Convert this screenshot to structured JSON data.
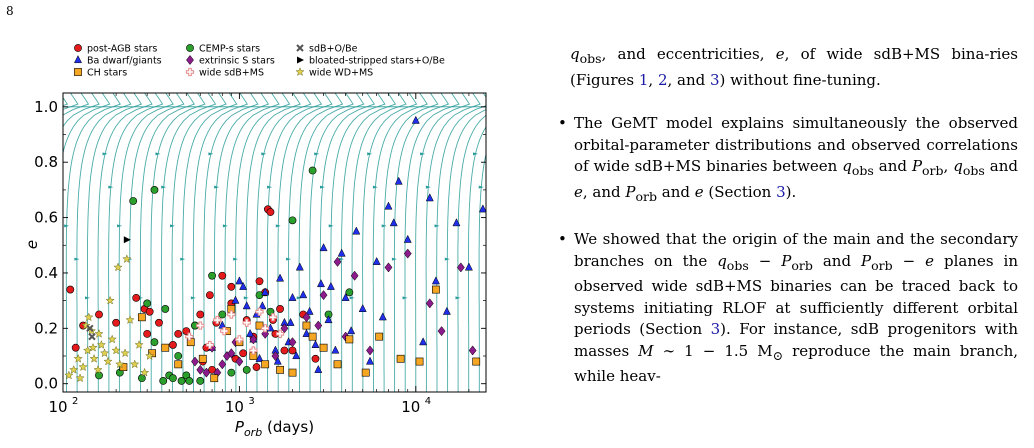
{
  "page": {
    "number": "8"
  },
  "legend": [
    {
      "label": "post-AGB stars",
      "marker": "circle",
      "color": "#e41a1c"
    },
    {
      "label": "CEMP-s stars",
      "marker": "circle",
      "color": "#2ca02c"
    },
    {
      "label": "sdB+O/Be",
      "marker": "x",
      "color": "#555555"
    },
    {
      "label": "Ba dwarf/giants",
      "marker": "triangle",
      "color": "#1f2ee8"
    },
    {
      "label": "extrinsic S stars",
      "marker": "diamond",
      "color": "#8b1a8b"
    },
    {
      "label": "bloated-stripped stars+O/Be",
      "marker": "right-triangle",
      "color": "#000000"
    },
    {
      "label": "CH stars",
      "marker": "square",
      "color": "#f5a623"
    },
    {
      "label": "wide sdB+MS",
      "marker": "plus",
      "color": "#e88a8a"
    },
    {
      "label": "wide WD+MS",
      "marker": "star",
      "color": "#e0d050"
    }
  ],
  "chart_data": {
    "type": "scatter",
    "xlabel": "P_orb (days)",
    "xlabel_main": "P",
    "xlabel_sub": "orb",
    "xlabel_rest": " (days)",
    "ylabel": "e",
    "xscale": "log",
    "xlim": [
      100,
      25000
    ],
    "ylim": [
      -0.03,
      1.05
    ],
    "xticks": [
      100,
      1000,
      10000
    ],
    "xtick_base": "10",
    "xtick_exps": [
      "2",
      "3",
      "4"
    ],
    "yticks": [
      0.0,
      0.2,
      0.4,
      0.6,
      0.8,
      1.0
    ],
    "ytick_labels": [
      "0.0",
      "0.2",
      "0.4",
      "0.6",
      "0.8",
      "1.0"
    ],
    "streamline_color": "#2a9d9a",
    "series": [
      {
        "name": "post-AGB stars",
        "marker": "circle",
        "color": "#e41a1c",
        "x": [
          110,
          118,
          130,
          160,
          200,
          260,
          290,
          300,
          310,
          350,
          420,
          500,
          560,
          620,
          680,
          740,
          800,
          900,
          950,
          1050,
          1100,
          1200,
          1300,
          1450,
          1500,
          1600,
          1700,
          1800,
          2000,
          2300,
          2700,
          600,
          650,
          450,
          1400,
          1550,
          700,
          1250,
          900
        ],
        "y": [
          0.34,
          0.13,
          0.21,
          0.25,
          0.22,
          0.31,
          0.27,
          0.18,
          0.26,
          0.22,
          0.14,
          0.19,
          0.21,
          0.08,
          0.32,
          0.22,
          0.39,
          0.29,
          0.09,
          0.11,
          0.23,
          0.17,
          0.37,
          0.63,
          0.62,
          0.18,
          0.27,
          0.12,
          0.12,
          0.25,
          0.09,
          0.25,
          0.13,
          0.18,
          0.33,
          0.23,
          0.05,
          0.06,
          0.35
        ]
      },
      {
        "name": "CEMP-s stars",
        "marker": "circle",
        "color": "#2ca02c",
        "x": [
          160,
          210,
          250,
          280,
          300,
          330,
          370,
          400,
          420,
          470,
          500,
          520,
          560,
          600,
          700,
          800,
          900,
          1100,
          1300,
          1500,
          2000,
          2600,
          3200,
          4200,
          450,
          380,
          330
        ],
        "y": [
          0.03,
          0.04,
          0.66,
          0.02,
          0.29,
          0.15,
          0.01,
          0.03,
          0.02,
          0.01,
          0.03,
          0.01,
          0.21,
          0.01,
          0.39,
          0.25,
          0.04,
          0.05,
          0.32,
          0.26,
          0.59,
          0.77,
          0.25,
          0.33,
          0.1,
          0.27,
          0.7
        ]
      },
      {
        "name": "Ba dwarf/giants",
        "marker": "triangle",
        "color": "#1f2ee8",
        "x": [
          700,
          800,
          900,
          1000,
          1100,
          1200,
          1250,
          1300,
          1400,
          1500,
          1600,
          1700,
          1800,
          1900,
          2000,
          2100,
          2200,
          2400,
          2500,
          2700,
          2900,
          3000,
          3200,
          3500,
          3800,
          4000,
          4300,
          4600,
          5000,
          5500,
          6000,
          6500,
          7000,
          7500,
          8000,
          9000,
          10000,
          11000,
          12000,
          13000,
          15000,
          17000,
          20000,
          24000,
          3300,
          2800,
          2300,
          1950,
          1650,
          1350,
          1150,
          1050,
          950
        ],
        "y": [
          0.13,
          0.21,
          0.11,
          0.37,
          0.28,
          0.16,
          0.25,
          0.09,
          0.33,
          0.2,
          0.12,
          0.38,
          0.22,
          0.15,
          0.31,
          0.1,
          0.42,
          0.18,
          0.26,
          0.14,
          0.36,
          0.49,
          0.23,
          0.12,
          0.47,
          0.31,
          0.19,
          0.55,
          0.27,
          0.08,
          0.44,
          0.24,
          0.64,
          0.58,
          0.73,
          0.52,
          0.95,
          0.15,
          0.67,
          0.37,
          0.26,
          0.58,
          0.42,
          0.63,
          0.35,
          0.05,
          0.32,
          0.22,
          0.08,
          0.28,
          0.18,
          0.35,
          0.3
        ]
      },
      {
        "name": "extrinsic S stars",
        "marker": "diamond",
        "color": "#8b1a8b",
        "x": [
          560,
          600,
          650,
          700,
          750,
          800,
          850,
          900,
          1000,
          1200,
          1400,
          1600,
          1800,
          2000,
          2400,
          2800,
          3000,
          3600,
          4000,
          4500,
          5500,
          7000,
          9000,
          12000,
          14000,
          18000,
          21000,
          950
        ],
        "y": [
          0.08,
          0.05,
          0.04,
          0.13,
          0.04,
          0.07,
          0.1,
          0.11,
          0.08,
          0.16,
          0.18,
          0.1,
          0.2,
          0.15,
          0.24,
          0.21,
          0.32,
          0.44,
          0.17,
          0.39,
          0.12,
          0.42,
          0.47,
          0.29,
          0.19,
          0.42,
          0.12,
          0.15
        ]
      },
      {
        "name": "CH stars",
        "marker": "square",
        "color": "#f5a623",
        "x": [
          220,
          280,
          320,
          380,
          450,
          530,
          620,
          720,
          850,
          1000,
          1200,
          1400,
          1700,
          2000,
          2400,
          3000,
          3600,
          4200,
          5200,
          6200,
          8200,
          10500,
          13000,
          22000,
          1300,
          2600,
          900
        ],
        "y": [
          0.06,
          0.24,
          0.11,
          0.13,
          0.07,
          0.15,
          0.09,
          0.02,
          0.19,
          0.15,
          0.1,
          0.07,
          0.05,
          0.04,
          0.21,
          0.13,
          0.07,
          0.16,
          0.04,
          0.17,
          0.09,
          0.08,
          0.34,
          0.08,
          0.21,
          0.17,
          0.27
        ]
      },
      {
        "name": "wide sdB+MS",
        "marker": "plus",
        "color": "#e88a8a",
        "x": [
          520,
          600,
          680,
          750,
          820,
          900,
          1000,
          1100,
          1200,
          1300,
          1400,
          1550,
          1700
        ],
        "y": [
          0.17,
          0.21,
          0.14,
          0.23,
          0.19,
          0.25,
          0.16,
          0.22,
          0.12,
          0.26,
          0.2,
          0.24,
          0.18
        ]
      },
      {
        "name": "wide WD+MS",
        "marker": "star",
        "color": "#e0d050",
        "x": [
          108,
          115,
          122,
          130,
          138,
          145,
          150,
          158,
          165,
          172,
          180,
          190,
          200,
          210,
          225,
          240,
          255,
          270,
          290,
          310,
          140,
          160,
          185,
          205,
          230,
          135,
          125,
          148
        ],
        "y": [
          0.03,
          0.05,
          0.09,
          0.06,
          0.12,
          0.19,
          0.09,
          0.05,
          0.14,
          0.11,
          0.08,
          0.16,
          0.12,
          0.07,
          0.11,
          0.23,
          0.07,
          0.14,
          0.04,
          0.1,
          0.24,
          0.18,
          0.3,
          0.42,
          0.45,
          0.21,
          0.02,
          0.13
        ]
      },
      {
        "name": "sdB+O/Be",
        "marker": "x",
        "color": "#555555",
        "x": [
          142,
          146
        ],
        "y": [
          0.2,
          0.17
        ]
      },
      {
        "name": "bloated-stripped stars+O/Be",
        "marker": "right-triangle",
        "color": "#000000",
        "x": [
          230
        ],
        "y": [
          0.52
        ]
      }
    ]
  },
  "text": {
    "intro_a": "q",
    "intro_sub": "obs",
    "intro_b": ", and eccentricities, ",
    "intro_e": "e",
    "intro_c": ", of wide sdB+MS bina-ries (Figures ",
    "ref1": "1",
    "comma1": ", ",
    "ref2": "2",
    "and1": ", and ",
    "ref3": "3",
    "intro_d": ") without fine-tuning.",
    "b1_a": "The GeMT model explains simultaneously the observed orbital-parameter distributions and observed correlations of wide sdB+MS binaries between ",
    "b1_q": "q",
    "b1_sub1": "obs",
    "b1_and1": " and ",
    "b1_p1": "P",
    "b1_sub2": "orb",
    "b1_comma": ", ",
    "b1_q2": "q",
    "b1_sub3": "obs",
    "b1_and2": " and ",
    "b1_e1": "e",
    "b1_andp": ", and ",
    "b1_p2": "P",
    "b1_sub4": "orb",
    "b1_and3": " and ",
    "b1_e2": "e",
    "b1_open": " (Section ",
    "b1_ref": "3",
    "b1_close": ").",
    "b2_a": "We showed that the origin of the main and the secondary branches on the ",
    "b2_q": "q",
    "b2_sub1": "obs",
    "b2_minus1": " − ",
    "b2_p1": "P",
    "b2_sub2": "orb",
    "b2_and": " and ",
    "b2_p2": "P",
    "b2_sub3": "orb",
    "b2_minus2": " − ",
    "b2_e": "e",
    "b2_b": " planes in observed wide sdB+MS binaries can be traced back to systems initiating RLOF at sufficiently different orbital periods (Section ",
    "b2_ref": "3",
    "b2_c": "). For instance, sdB progenitors with masses ",
    "b2_m": "M",
    "b2_d": " ∼ 1 − 1.5 M",
    "b2_sun": "⊙",
    "b2_e2": " reproduce the main branch, while heav-"
  }
}
